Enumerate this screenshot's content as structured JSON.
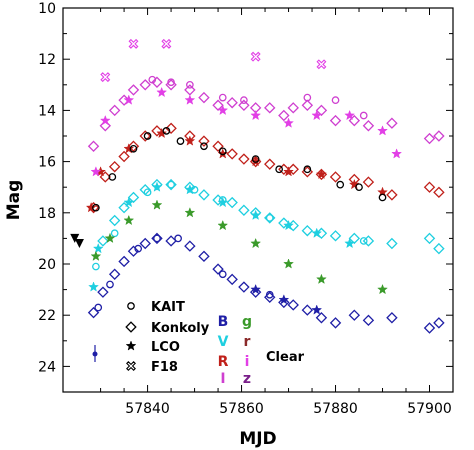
{
  "chart_data": {
    "type": "scatter",
    "title": "",
    "xlabel": "MJD",
    "ylabel": "Mag",
    "xlim": [
      57822,
      57905
    ],
    "ylim": [
      10,
      25
    ],
    "y_inverted": true,
    "x_ticks": [
      57840,
      57860,
      57880,
      57900
    ],
    "x_tick_labels": [
      "57840",
      "57860",
      "57880",
      "57900"
    ],
    "y_ticks": [
      10,
      12,
      14,
      16,
      18,
      20,
      22,
      24
    ],
    "y_tick_labels": [
      "10",
      "12",
      "14",
      "16",
      "18",
      "20",
      "22",
      "24"
    ],
    "grid": false,
    "legend_position": "bottom-left",
    "legend_telescopes": [
      {
        "label": "KAIT",
        "marker": "circle"
      },
      {
        "label": "Konkoly",
        "marker": "diamond"
      },
      {
        "label": "LCO",
        "marker": "star"
      },
      {
        "label": "F18",
        "marker": "cross"
      }
    ],
    "legend_bands": [
      {
        "label": "B",
        "color": "#1f1fa6"
      },
      {
        "label": "V",
        "color": "#1ecfe0"
      },
      {
        "label": "R",
        "color": "#c0201a"
      },
      {
        "label": "I",
        "color": "#cf3fd0"
      },
      {
        "label": "g",
        "color": "#3a9a2a"
      },
      {
        "label": "r",
        "color": "#8a2a2a"
      },
      {
        "label": "i",
        "color": "#e23fe6"
      },
      {
        "label": "z",
        "color": "#7a1f8a"
      }
    ],
    "legend_clear_label": "Clear",
    "series": [
      {
        "band": "B",
        "color": "#1f1fa6",
        "telescope": "Konkoly",
        "marker": "diamond",
        "x": [
          57828.5,
          57830.5,
          57833,
          57835,
          57837,
          57839.5,
          57842,
          57845,
          57849,
          57852,
          57855,
          57858,
          57860.5,
          57863,
          57866,
          57869,
          57871,
          57874,
          57877,
          57880,
          57884,
          57887,
          57892,
          57900,
          57902
        ],
        "y": [
          21.9,
          21.1,
          20.4,
          19.9,
          19.5,
          19.2,
          19.0,
          19.1,
          19.3,
          19.7,
          20.2,
          20.6,
          20.9,
          21.1,
          21.3,
          21.5,
          21.6,
          21.8,
          22.1,
          22.3,
          22.0,
          22.2,
          22.1,
          22.5,
          22.3
        ]
      },
      {
        "band": "B",
        "color": "#1f1fa6",
        "telescope": "KAIT",
        "marker": "circle",
        "x": [
          57829.5,
          57832,
          57838,
          57842,
          57846.5,
          57856,
          57866
        ],
        "y": [
          21.7,
          20.8,
          19.4,
          19.0,
          19.0,
          20.4,
          21.2
        ]
      },
      {
        "band": "B",
        "color": "#1f1fa6",
        "telescope": "LCO",
        "marker": "star",
        "x": [
          57863,
          57869,
          57876
        ],
        "y": [
          21.0,
          21.4,
          21.8
        ]
      },
      {
        "band": "V",
        "color": "#1ecfe0",
        "telescope": "Konkoly",
        "marker": "diamond",
        "x": [
          57830.5,
          57833,
          57835,
          57837,
          57839.5,
          57842,
          57845,
          57849,
          57852,
          57855,
          57858,
          57860.5,
          57863,
          57866,
          57869,
          57871,
          57874,
          57877,
          57880,
          57884,
          57887,
          57892,
          57900,
          57902
        ],
        "y": [
          19.1,
          18.3,
          17.8,
          17.4,
          17.1,
          16.9,
          16.9,
          17.0,
          17.3,
          17.5,
          17.6,
          17.9,
          18.0,
          18.2,
          18.4,
          18.5,
          18.7,
          18.8,
          18.9,
          19.0,
          19.1,
          19.2,
          19.0,
          19.4
        ]
      },
      {
        "band": "V",
        "color": "#1ecfe0",
        "telescope": "KAIT",
        "marker": "circle",
        "x": [
          57829,
          57833,
          57840,
          57845,
          57850,
          57856,
          57866,
          57886
        ],
        "y": [
          20.1,
          18.8,
          17.2,
          16.9,
          17.1,
          17.5,
          18.2,
          19.1
        ]
      },
      {
        "band": "V",
        "color": "#1ecfe0",
        "telescope": "LCO",
        "marker": "star",
        "x": [
          57828.5,
          57829.5,
          57836,
          57842,
          57849,
          57856,
          57863,
          57870,
          57876,
          57883
        ],
        "y": [
          20.9,
          19.4,
          17.6,
          17.0,
          17.1,
          17.6,
          18.1,
          18.5,
          18.8,
          19.2
        ]
      },
      {
        "band": "R",
        "color": "#c0201a",
        "telescope": "Konkoly",
        "marker": "diamond",
        "x": [
          57828.5,
          57831,
          57833,
          57835,
          57837,
          57839.5,
          57842,
          57845,
          57849,
          57852,
          57855,
          57858,
          57860.5,
          57863,
          57866,
          57869,
          57871,
          57874,
          57877,
          57880,
          57884,
          57887,
          57892,
          57900,
          57902
        ],
        "y": [
          17.8,
          16.6,
          16.2,
          15.8,
          15.4,
          15.0,
          14.8,
          14.7,
          15.0,
          15.2,
          15.4,
          15.7,
          15.9,
          16.0,
          16.1,
          16.3,
          16.3,
          16.4,
          16.5,
          16.6,
          16.7,
          16.8,
          17.3,
          17.0,
          17.2
        ]
      },
      {
        "band": "R",
        "color": "#c0201a",
        "telescope": "LCO",
        "marker": "star",
        "x": [
          57828,
          57830,
          57836,
          57843,
          57849,
          57856,
          57863,
          57870,
          57877,
          57884,
          57890
        ],
        "y": [
          17.8,
          16.4,
          15.5,
          14.9,
          15.2,
          15.7,
          16.0,
          16.4,
          16.5,
          16.9,
          17.2
        ]
      },
      {
        "band": "R",
        "color": "#000000",
        "telescope": "KAIT",
        "marker": "circle",
        "x": [
          57829,
          57832.5,
          57837,
          57840,
          57844,
          57847,
          57852,
          57856,
          57863,
          57868,
          57874,
          57881,
          57885,
          57890
        ],
        "y": [
          17.8,
          16.6,
          15.5,
          15.0,
          14.8,
          15.2,
          15.4,
          15.6,
          15.9,
          16.3,
          16.3,
          16.9,
          17.0,
          17.4
        ]
      },
      {
        "band": "I",
        "color": "#cf3fd0",
        "telescope": "Konkoly",
        "marker": "diamond",
        "x": [
          57828.5,
          57831,
          57833,
          57835,
          57837,
          57839.5,
          57842,
          57845,
          57849,
          57852,
          57855,
          57858,
          57860.5,
          57863,
          57866,
          57869,
          57871,
          57874,
          57877,
          57880,
          57884,
          57887,
          57892,
          57900,
          57902
        ],
        "y": [
          15.4,
          14.6,
          14.0,
          13.6,
          13.2,
          13.0,
          12.9,
          13.0,
          13.2,
          13.5,
          13.8,
          13.7,
          13.8,
          13.9,
          13.9,
          14.2,
          13.9,
          13.8,
          14.0,
          14.4,
          14.4,
          14.6,
          14.5,
          15.1,
          15.0
        ]
      },
      {
        "band": "I",
        "color": "#cf3fd0",
        "telescope": "KAIT",
        "marker": "circle",
        "x": [
          57841,
          57845,
          57849,
          57856,
          57860.5,
          57874,
          57880,
          57886
        ],
        "y": [
          12.8,
          12.9,
          13.0,
          13.5,
          13.6,
          13.5,
          13.6,
          14.2
        ]
      },
      {
        "band": "i",
        "color": "#e23fe6",
        "telescope": "LCO",
        "marker": "star",
        "x": [
          57829,
          57831,
          57836,
          57843,
          57849,
          57856,
          57863,
          57870,
          57876,
          57883,
          57890,
          57893
        ],
        "y": [
          16.4,
          14.4,
          13.6,
          13.3,
          13.6,
          14.0,
          14.2,
          14.5,
          14.2,
          14.2,
          14.8,
          15.7
        ]
      },
      {
        "band": "i",
        "color": "#e23fe6",
        "telescope": "F18",
        "marker": "cross",
        "x": [
          57831,
          57837,
          57844,
          57863,
          57877
        ],
        "y": [
          12.7,
          11.4,
          11.4,
          11.9,
          12.2
        ]
      },
      {
        "band": "g",
        "color": "#3a9a2a",
        "telescope": "LCO",
        "marker": "star",
        "x": [
          57829,
          57832,
          57836,
          57842,
          57849,
          57856,
          57863,
          57870,
          57877,
          57890
        ],
        "y": [
          19.7,
          19.0,
          18.3,
          17.7,
          18.0,
          18.5,
          19.2,
          20.0,
          20.6,
          21.0
        ]
      },
      {
        "band": "Clear",
        "color": "#000000",
        "telescope": "upper-limit",
        "marker": "down-triangle",
        "x": [
          57824.5,
          57825.5
        ],
        "y": [
          19.0,
          19.2
        ]
      }
    ]
  }
}
